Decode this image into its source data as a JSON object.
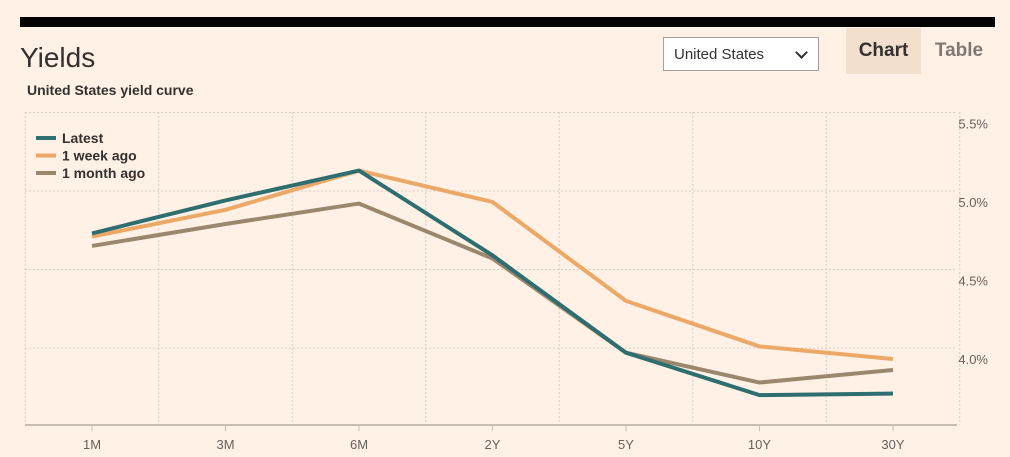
{
  "header": {
    "title": "Yields",
    "subtitle": "United States yield curve"
  },
  "country_select": {
    "value": "United States"
  },
  "tabs": [
    {
      "label": "Chart",
      "active": true
    },
    {
      "label": "Table",
      "active": false
    }
  ],
  "chart_data": {
    "type": "line",
    "categories": [
      "1M",
      "3M",
      "6M",
      "2Y",
      "5Y",
      "10Y",
      "30Y"
    ],
    "series": [
      {
        "name": "Latest",
        "color": "#2e6e70",
        "values": [
          4.73,
          4.94,
          5.13,
          4.59,
          3.97,
          3.7,
          3.71
        ]
      },
      {
        "name": "1 week ago",
        "color": "#eba866",
        "values": [
          4.71,
          4.88,
          5.13,
          4.93,
          4.3,
          4.01,
          3.93
        ]
      },
      {
        "name": "1 month ago",
        "color": "#9b876d",
        "values": [
          4.65,
          4.79,
          4.92,
          4.57,
          3.97,
          3.78,
          3.86
        ]
      }
    ],
    "yticks": [
      "5.5%",
      "5.0%",
      "4.5%",
      "4.0%"
    ],
    "ytick_values": [
      5.5,
      5.0,
      4.5,
      4.0
    ],
    "ylim": [
      3.5,
      5.5
    ],
    "grid": true,
    "legend_position": "top-left"
  }
}
